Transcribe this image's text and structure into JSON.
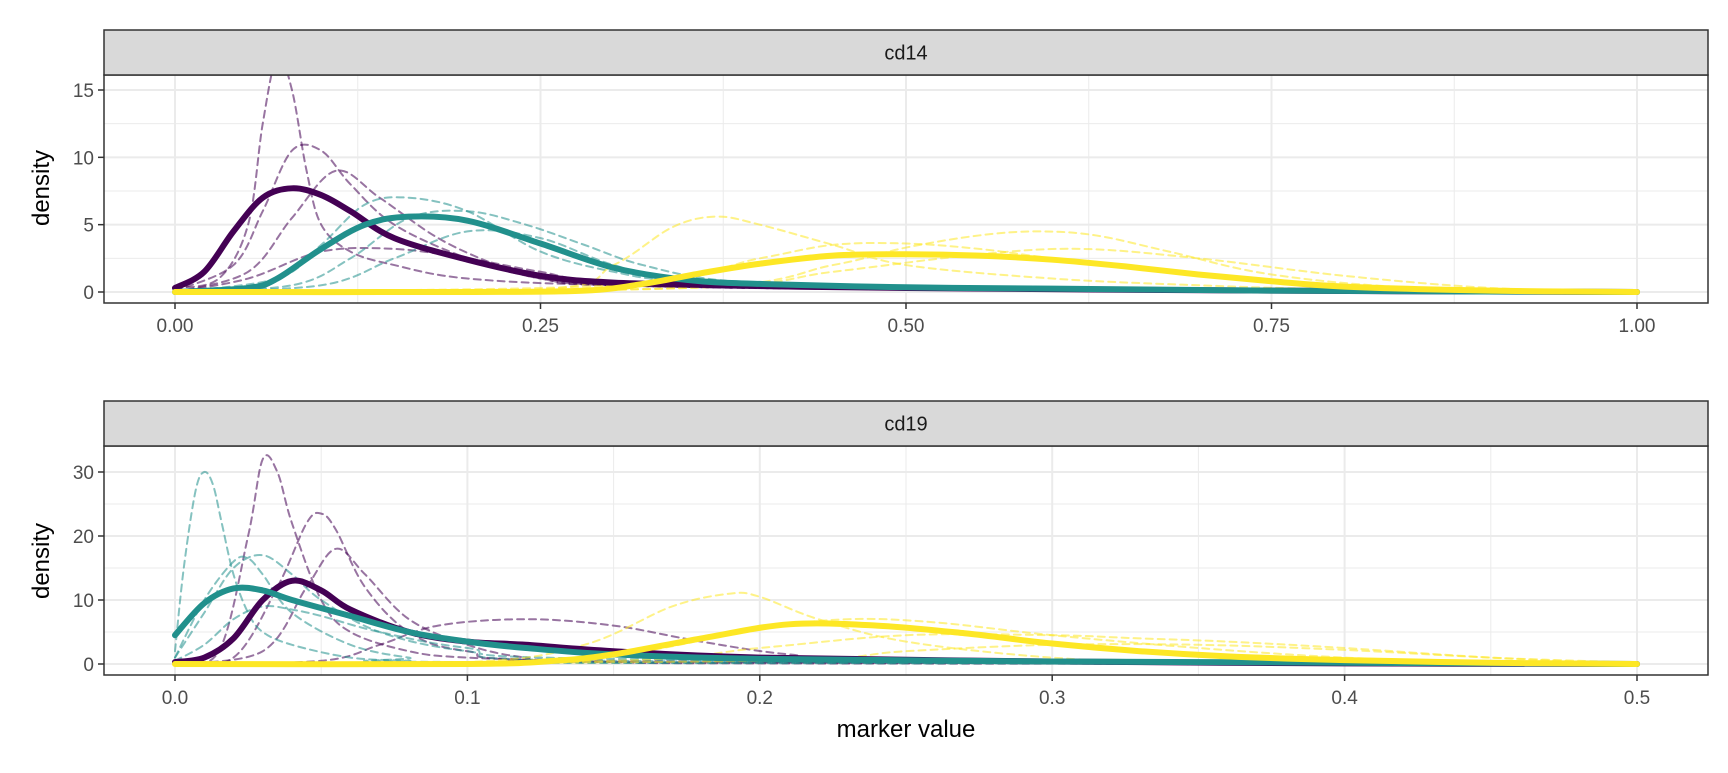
{
  "colors": {
    "purple": "#440154",
    "teal": "#21908C",
    "yellow": "#FDE725",
    "strip_fill": "#D9D9D9",
    "strip_border": "#333333",
    "grid": "#EBEBEB",
    "text": "#4D4D4D"
  },
  "axis_labels": {
    "xlabel": "marker value",
    "ylabel": "density"
  },
  "chart_data": [
    {
      "type": "line",
      "facet": "cd14",
      "title": "cd14",
      "xlabel": "",
      "ylabel": "density",
      "xlim": [
        0,
        1
      ],
      "ylim": [
        0,
        17.5
      ],
      "x_ticks": [
        0,
        0.25,
        0.5,
        0.75,
        1
      ],
      "x_tick_labels": [
        "0.00",
        "0.25",
        "0.50",
        "0.75",
        "1.00"
      ],
      "y_ticks": [
        0,
        5,
        10,
        15
      ],
      "y_tick_labels": [
        "0",
        "5",
        "10",
        "15"
      ],
      "grid": true,
      "series": [
        {
          "color": "purple",
          "style": "solid",
          "x": [
            0,
            0.02,
            0.04,
            0.06,
            0.08,
            0.1,
            0.12,
            0.15,
            0.2,
            0.25,
            0.3,
            0.4,
            0.5,
            0.75,
            1.0
          ],
          "y": [
            0.3,
            1.5,
            4.5,
            7.0,
            7.7,
            7.2,
            6.0,
            4.0,
            2.4,
            1.2,
            0.7,
            0.45,
            0.3,
            0.1,
            0
          ]
        },
        {
          "color": "teal",
          "style": "solid",
          "x": [
            0,
            0.05,
            0.07,
            0.1,
            0.13,
            0.16,
            0.2,
            0.25,
            0.3,
            0.35,
            0.4,
            0.5,
            0.6,
            0.75,
            1.0
          ],
          "y": [
            0,
            0.3,
            1.0,
            3.2,
            5.0,
            5.6,
            5.3,
            3.6,
            1.8,
            0.9,
            0.6,
            0.35,
            0.25,
            0.1,
            0
          ]
        },
        {
          "color": "yellow",
          "style": "solid",
          "x": [
            0,
            0.2,
            0.28,
            0.32,
            0.36,
            0.4,
            0.45,
            0.5,
            0.55,
            0.6,
            0.65,
            0.7,
            0.75,
            0.8,
            0.9,
            1.0
          ],
          "y": [
            0,
            0,
            0.1,
            0.6,
            1.4,
            2.1,
            2.7,
            2.8,
            2.7,
            2.4,
            1.9,
            1.3,
            0.8,
            0.4,
            0.1,
            0
          ]
        },
        {
          "color": "purple",
          "style": "dashed",
          "x": [
            0,
            0.03,
            0.05,
            0.06,
            0.07,
            0.08,
            0.09,
            0.1,
            0.12,
            0.15,
            0.2,
            0.3,
            0.5,
            1.0
          ],
          "y": [
            0.3,
            1.0,
            5.0,
            12.5,
            17.5,
            15.0,
            9.0,
            5.0,
            3.0,
            2.0,
            1.0,
            0.5,
            0.2,
            0
          ]
        },
        {
          "color": "purple",
          "style": "dashed",
          "x": [
            0,
            0.04,
            0.06,
            0.08,
            0.1,
            0.12,
            0.15,
            0.2,
            0.25,
            0.3,
            0.5,
            1.0
          ],
          "y": [
            0.1,
            2.0,
            6.0,
            10.5,
            10.5,
            8.0,
            5.0,
            2.5,
            1.0,
            0.5,
            0.2,
            0
          ]
        },
        {
          "color": "purple",
          "style": "dashed",
          "x": [
            0,
            0.05,
            0.08,
            0.11,
            0.14,
            0.18,
            0.22,
            0.25,
            0.3,
            0.5,
            1.0
          ],
          "y": [
            0,
            1.5,
            5.5,
            9.0,
            7.0,
            4.0,
            2.0,
            1.0,
            0.5,
            0.2,
            0
          ]
        },
        {
          "color": "purple",
          "style": "dashed",
          "x": [
            0,
            0.05,
            0.1,
            0.15,
            0.2,
            0.25,
            0.3,
            0.5,
            1.0
          ],
          "y": [
            0,
            1.0,
            3.0,
            3.2,
            2.5,
            1.5,
            0.8,
            0.2,
            0
          ]
        },
        {
          "color": "teal",
          "style": "dashed",
          "x": [
            0,
            0.07,
            0.1,
            0.13,
            0.16,
            0.2,
            0.25,
            0.3,
            0.35,
            0.5,
            1.0
          ],
          "y": [
            0,
            1.0,
            3.5,
            6.5,
            7.0,
            6.0,
            3.0,
            1.5,
            0.8,
            0.3,
            0
          ]
        },
        {
          "color": "teal",
          "style": "dashed",
          "x": [
            0,
            0.08,
            0.12,
            0.16,
            0.2,
            0.24,
            0.28,
            0.32,
            0.38,
            0.5,
            1.0
          ],
          "y": [
            0,
            0.5,
            2.5,
            5.5,
            6.0,
            5.0,
            3.5,
            2.0,
            0.8,
            0.3,
            0
          ]
        },
        {
          "color": "teal",
          "style": "dashed",
          "x": [
            0,
            0.1,
            0.15,
            0.2,
            0.25,
            0.3,
            0.35,
            0.5,
            1.0
          ],
          "y": [
            0,
            0.5,
            2.5,
            4.5,
            4.0,
            2.0,
            1.0,
            0.3,
            0
          ]
        },
        {
          "color": "yellow",
          "style": "dashed",
          "x": [
            0,
            0.25,
            0.3,
            0.34,
            0.37,
            0.4,
            0.45,
            0.5,
            0.6,
            0.7,
            0.8,
            1.0
          ],
          "y": [
            0,
            0.2,
            2.0,
            4.8,
            5.6,
            5.0,
            3.5,
            2.0,
            1.0,
            0.5,
            0.2,
            0
          ]
        },
        {
          "color": "yellow",
          "style": "dashed",
          "x": [
            0,
            0.35,
            0.45,
            0.5,
            0.55,
            0.59,
            0.63,
            0.68,
            0.75,
            0.85,
            1.0
          ],
          "y": [
            0,
            0.3,
            2.0,
            3.3,
            4.2,
            4.5,
            4.2,
            3.0,
            1.3,
            0.3,
            0
          ]
        },
        {
          "color": "yellow",
          "style": "dashed",
          "x": [
            0,
            0.3,
            0.4,
            0.45,
            0.5,
            0.55,
            0.6,
            0.7,
            0.8,
            1.0
          ],
          "y": [
            0,
            0.5,
            2.5,
            3.5,
            3.6,
            3.2,
            2.5,
            1.2,
            0.4,
            0
          ]
        },
        {
          "color": "yellow",
          "style": "dashed",
          "x": [
            0,
            0.35,
            0.45,
            0.55,
            0.62,
            0.7,
            0.8,
            0.9,
            1.0
          ],
          "y": [
            0,
            0.3,
            1.5,
            2.8,
            3.2,
            2.5,
            1.2,
            0.3,
            0
          ]
        }
      ]
    },
    {
      "type": "line",
      "facet": "cd19",
      "title": "cd19",
      "xlabel": "marker value",
      "ylabel": "density",
      "xlim": [
        0,
        0.5
      ],
      "ylim": [
        0,
        33
      ],
      "x_ticks": [
        0,
        0.1,
        0.2,
        0.3,
        0.4,
        0.5
      ],
      "x_tick_labels": [
        "0.0",
        "0.1",
        "0.2",
        "0.3",
        "0.4",
        "0.5"
      ],
      "y_ticks": [
        0,
        10,
        20,
        30
      ],
      "y_tick_labels": [
        "0",
        "10",
        "20",
        "30"
      ],
      "grid": true,
      "series": [
        {
          "color": "purple",
          "style": "solid",
          "x": [
            0,
            0.01,
            0.02,
            0.03,
            0.04,
            0.05,
            0.06,
            0.08,
            0.1,
            0.12,
            0.15,
            0.2,
            0.3,
            0.4,
            0.5
          ],
          "y": [
            0.3,
            1.0,
            4.0,
            10.0,
            13.0,
            11.5,
            8.5,
            5.0,
            3.5,
            3.0,
            2.0,
            1.0,
            0.4,
            0.1,
            0
          ]
        },
        {
          "color": "teal",
          "style": "solid",
          "x": [
            0,
            0.01,
            0.02,
            0.03,
            0.04,
            0.06,
            0.08,
            0.1,
            0.12,
            0.15,
            0.2,
            0.3,
            0.4,
            0.5
          ],
          "y": [
            4.5,
            9.5,
            11.8,
            11.5,
            10.0,
            7.5,
            5.0,
            3.5,
            2.5,
            1.5,
            0.8,
            0.4,
            0.2,
            0
          ]
        },
        {
          "color": "yellow",
          "style": "solid",
          "x": [
            0,
            0.1,
            0.13,
            0.15,
            0.18,
            0.21,
            0.24,
            0.27,
            0.3,
            0.33,
            0.36,
            0.4,
            0.45,
            0.5
          ],
          "y": [
            0,
            0,
            0.5,
            1.5,
            4.0,
            6.2,
            6.0,
            4.8,
            3.2,
            2.0,
            1.2,
            0.6,
            0.2,
            0
          ]
        },
        {
          "color": "purple",
          "style": "dashed",
          "x": [
            0,
            0.015,
            0.025,
            0.03,
            0.035,
            0.04,
            0.05,
            0.06,
            0.08,
            0.1,
            0.15,
            0.2,
            0.5
          ],
          "y": [
            0,
            2.0,
            20.0,
            32.0,
            30.0,
            22.0,
            10.0,
            5.0,
            2.0,
            1.0,
            0.3,
            0.1,
            0
          ]
        },
        {
          "color": "purple",
          "style": "dashed",
          "x": [
            0,
            0.02,
            0.035,
            0.045,
            0.05,
            0.055,
            0.065,
            0.08,
            0.1,
            0.15,
            0.5
          ],
          "y": [
            0,
            1.0,
            12.0,
            22.0,
            23.5,
            21.0,
            12.0,
            5.0,
            2.0,
            0.5,
            0
          ]
        },
        {
          "color": "purple",
          "style": "dashed",
          "x": [
            0,
            0.03,
            0.045,
            0.055,
            0.065,
            0.08,
            0.1,
            0.12,
            0.15,
            0.5
          ],
          "y": [
            0,
            2.0,
            12.0,
            18.0,
            14.0,
            7.0,
            3.0,
            1.0,
            0.3,
            0
          ]
        },
        {
          "color": "purple",
          "style": "dashed",
          "x": [
            0,
            0.05,
            0.07,
            0.09,
            0.12,
            0.15,
            0.18,
            0.21,
            0.25,
            0.5
          ],
          "y": [
            0,
            0.5,
            3.0,
            6.0,
            7.0,
            6.0,
            3.5,
            1.5,
            0.5,
            0
          ]
        },
        {
          "color": "teal",
          "style": "dashed",
          "x": [
            0,
            0.003,
            0.007,
            0.01,
            0.013,
            0.016,
            0.02,
            0.025,
            0.03,
            0.04,
            0.06,
            0.08,
            0.1,
            0.5
          ],
          "y": [
            2.0,
            15.0,
            27.0,
            30.0,
            28.0,
            22.0,
            14.0,
            8.0,
            5.0,
            3.0,
            1.0,
            0.5,
            0.2,
            0
          ]
        },
        {
          "color": "teal",
          "style": "dashed",
          "x": [
            0,
            0.01,
            0.02,
            0.03,
            0.04,
            0.05,
            0.07,
            0.1,
            0.15,
            0.5
          ],
          "y": [
            1.0,
            8.0,
            15.0,
            17.0,
            14.0,
            10.0,
            5.0,
            2.0,
            0.5,
            0
          ]
        },
        {
          "color": "teal",
          "style": "dashed",
          "x": [
            0,
            0.01,
            0.02,
            0.025,
            0.03,
            0.04,
            0.06,
            0.08,
            0.1,
            0.5
          ],
          "y": [
            1.0,
            10.0,
            16.0,
            16.5,
            14.0,
            8.0,
            3.0,
            1.0,
            0.3,
            0
          ]
        },
        {
          "color": "teal",
          "style": "dashed",
          "x": [
            0,
            0.01,
            0.02,
            0.03,
            0.04,
            0.05,
            0.07,
            0.1,
            0.15,
            0.5
          ],
          "y": [
            0.5,
            3.0,
            7.0,
            9.0,
            8.5,
            7.5,
            5.0,
            2.5,
            0.8,
            0
          ]
        },
        {
          "color": "yellow",
          "style": "dashed",
          "x": [
            0,
            0.1,
            0.14,
            0.17,
            0.19,
            0.2,
            0.22,
            0.25,
            0.3,
            0.35,
            0.5
          ],
          "y": [
            0,
            0.3,
            3.0,
            9.0,
            11.0,
            10.5,
            7.0,
            3.5,
            1.0,
            0.3,
            0
          ]
        },
        {
          "color": "yellow",
          "style": "dashed",
          "x": [
            0,
            0.12,
            0.16,
            0.2,
            0.23,
            0.26,
            0.3,
            0.35,
            0.4,
            0.45,
            0.5
          ],
          "y": [
            0,
            0.3,
            2.0,
            5.5,
            7.0,
            6.5,
            4.5,
            2.5,
            1.0,
            0.3,
            0
          ]
        },
        {
          "color": "yellow",
          "style": "dashed",
          "x": [
            0,
            0.15,
            0.2,
            0.25,
            0.3,
            0.33,
            0.36,
            0.4,
            0.45,
            0.5
          ],
          "y": [
            0,
            0.5,
            2.5,
            4.5,
            4.5,
            4.0,
            3.5,
            2.5,
            1.0,
            0
          ]
        },
        {
          "color": "yellow",
          "style": "dashed",
          "x": [
            0,
            0.2,
            0.25,
            0.3,
            0.35,
            0.4,
            0.45,
            0.5
          ],
          "y": [
            0,
            0.5,
            2.0,
            3.0,
            3.0,
            2.2,
            1.0,
            0.2
          ]
        }
      ]
    }
  ]
}
